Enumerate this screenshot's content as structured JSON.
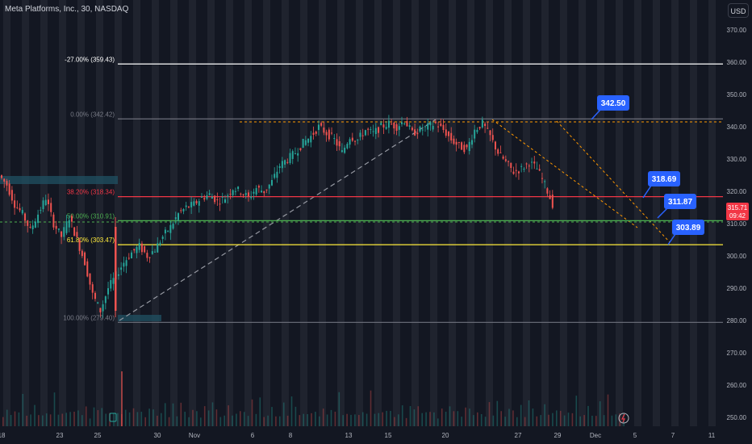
{
  "header": {
    "symbol_title": "Meta Platforms, Inc., 30, NASDAQ",
    "currency_label": "USD"
  },
  "colors": {
    "background": "#131722",
    "band": "#2a2e39",
    "grid_text": "#b2b5be",
    "up": "#26a69a",
    "down": "#ef5350",
    "fib_white": "#ffffff",
    "fib_red": "#f23645",
    "fib_green": "#4caf50",
    "fib_yellow": "#ffeb3b",
    "fib_gray": "#787b86",
    "callout": "#2962ff",
    "trend": "#ff9800",
    "price_tag": "#f23645"
  },
  "chart_data": {
    "type": "candlestick",
    "title": "Meta Platforms, Inc., 30, NASDAQ",
    "ylim": [
      248,
      378
    ],
    "y_ticks": [
      250,
      260,
      270,
      280,
      290,
      300,
      310,
      320,
      330,
      340,
      350,
      360,
      370
    ],
    "x_ticks": [
      "18",
      "23",
      "25",
      "30",
      "Nov",
      "6",
      "8",
      "13",
      "15",
      "20",
      "27",
      "29",
      "Dec",
      "5",
      "7",
      "11"
    ],
    "fib_levels": [
      {
        "label": "-27.00% (359.43)",
        "value": 359.43,
        "color": "white"
      },
      {
        "label": "0.00% (342.42)",
        "value": 342.42,
        "color": "gray"
      },
      {
        "label": "38.20% (318.34)",
        "value": 318.34,
        "color": "red"
      },
      {
        "label": "50.00% (310.91)",
        "value": 310.91,
        "color": "green"
      },
      {
        "label": "61.80% (303.47)",
        "value": 303.47,
        "color": "yellow"
      },
      {
        "label": "100.00% (279.40)",
        "value": 279.4,
        "color": "gray"
      }
    ],
    "callouts": [
      "342.50",
      "318.69",
      "311.87",
      "303.89"
    ],
    "last_price": "315.71",
    "countdown": "09:42",
    "price_path": [
      [
        0,
        325
      ],
      [
        2,
        322
      ],
      [
        4,
        316
      ],
      [
        6,
        313
      ],
      [
        8,
        308
      ],
      [
        10,
        313
      ],
      [
        12,
        318
      ],
      [
        14,
        310
      ],
      [
        16,
        306
      ],
      [
        18,
        312
      ],
      [
        19,
        305
      ],
      [
        20,
        298
      ],
      [
        21,
        288
      ],
      [
        22,
        283
      ],
      [
        23,
        290
      ],
      [
        24,
        294
      ],
      [
        25,
        298
      ],
      [
        26,
        301
      ],
      [
        27,
        303
      ],
      [
        28,
        300
      ],
      [
        29,
        302
      ],
      [
        30,
        306
      ],
      [
        31,
        309
      ],
      [
        32,
        313
      ],
      [
        33,
        315
      ],
      [
        34,
        316
      ],
      [
        35,
        318
      ],
      [
        36,
        319
      ],
      [
        37,
        317
      ],
      [
        38,
        318
      ],
      [
        39,
        321
      ],
      [
        40,
        320
      ],
      [
        41,
        318
      ],
      [
        42,
        321
      ],
      [
        43,
        320
      ],
      [
        44,
        323
      ],
      [
        45,
        328
      ],
      [
        46,
        330
      ],
      [
        47,
        332
      ],
      [
        48,
        335
      ],
      [
        49,
        337
      ],
      [
        50,
        340
      ],
      [
        51,
        338
      ],
      [
        52,
        336
      ],
      [
        53,
        332
      ],
      [
        54,
        337
      ],
      [
        55,
        336
      ],
      [
        56,
        339
      ],
      [
        57,
        338
      ],
      [
        58,
        340
      ],
      [
        59,
        341
      ],
      [
        60,
        340
      ],
      [
        61,
        342
      ],
      [
        62,
        338
      ],
      [
        63,
        339
      ],
      [
        64,
        340
      ],
      [
        65,
        341
      ],
      [
        66,
        339
      ],
      [
        67,
        336
      ],
      [
        68,
        334
      ],
      [
        69,
        333
      ],
      [
        70,
        339
      ],
      [
        71,
        341
      ],
      [
        72,
        337
      ],
      [
        73,
        332
      ],
      [
        74,
        329
      ],
      [
        75,
        326
      ],
      [
        76,
        327
      ],
      [
        77,
        329
      ],
      [
        78,
        327
      ],
      [
        79,
        322
      ],
      [
        80,
        316
      ]
    ],
    "volume": [
      0.3,
      0.5,
      0.2,
      0.6,
      0.35,
      0.8,
      0.3,
      0.25,
      0.45,
      0.3,
      0.2,
      0.55,
      0.3,
      0.9,
      0.4,
      0.3,
      0.25,
      0.5,
      0.35,
      0.3
    ]
  }
}
